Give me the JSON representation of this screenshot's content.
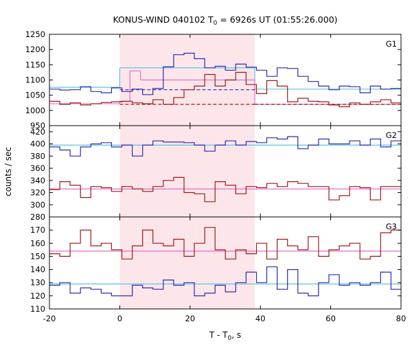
{
  "chart_data": {
    "type": "line",
    "title": "KONUS-WIND 040102 T",
    "title_sub": "0",
    "title_rest": " = 6926s UT (01:55:26.000)",
    "xlabel": "T - T",
    "xlabel_sub": "0",
    "xlabel_rest": ", s",
    "ylabel": "counts / sec",
    "xlim": [
      -20,
      80
    ],
    "x_ticks": [
      "-20",
      "0",
      "20",
      "40",
      "60",
      "80"
    ],
    "shaded_interval": [
      0,
      38.4
    ],
    "colors": {
      "shade": "#fde6ea",
      "blue": "#2b2bb0",
      "red": "#a01818",
      "cyan": "#5fc4e0",
      "pink": "#e070c8"
    },
    "panels": [
      {
        "label": "G1",
        "ylim": [
          950,
          1250
        ],
        "y_ticks": [
          950,
          1000,
          1050,
          1100,
          1150,
          1200,
          1250
        ],
        "bin_width": 2.944,
        "bin_start": -20,
        "series": [
          {
            "color_key": "blue",
            "values": [
              1070,
              1067,
              1068,
              1078,
              1062,
              1058,
              1074,
              1062,
              1070,
              1052,
              1072,
              1143,
              1183,
              1188,
              1170,
              1140,
              1145,
              1132,
              1152,
              1142,
              1132,
              1112,
              1140,
              1138,
              1112,
              1095,
              1080,
              1068,
              1080,
              1078,
              1058,
              1080,
              1070,
              1072,
              1078,
              1065,
              1082,
              1070,
              1078,
              1060,
              1080,
              1066,
              1062,
              1060
            ]
          },
          {
            "color_key": "red",
            "values": [
              1030,
              1020,
              1025,
              1018,
              1022,
              1026,
              1028,
              1030,
              1025,
              1022,
              1035,
              1020,
              1042,
              1068,
              1080,
              1118,
              1080,
              1100,
              1125,
              1085,
              1055,
              1098,
              1080,
              1028,
              1040,
              1030,
              1028,
              1018,
              1012,
              1025,
              1020,
              1028,
              1035,
              1025,
              1018,
              1022,
              1032,
              1020,
              1018,
              1012,
              1015,
              1022,
              1010,
              1025
            ]
          }
        ],
        "levels": [
          {
            "color_key": "cyan",
            "style": "solid",
            "segments": [
              {
                "x": [
                  -20,
                  0
                ],
                "y": 1076
              },
              {
                "x": [
                  0,
                  38.4
                ],
                "y": 1140
              },
              {
                "x": [
                  38.4,
                  80
                ],
                "y": 1070
              }
            ]
          },
          {
            "color_key": "pink",
            "style": "solid",
            "segments": [
              {
                "x": [
                  -20,
                  0
                ],
                "y": 1022
              },
              {
                "x": [
                  0,
                  2.9
                ],
                "y": 1030
              },
              {
                "x": [
                  2.9,
                  5.9
                ],
                "y": 1130
              },
              {
                "x": [
                  5.9,
                  38.4
                ],
                "y": 1100
              },
              {
                "x": [
                  38.4,
                  80
                ],
                "y": 1020
              }
            ]
          },
          {
            "color_key": "blue",
            "style": "dashed",
            "segments": [
              {
                "x": [
                  0,
                  38.4
                ],
                "y": 1068
              }
            ]
          },
          {
            "color_key": "red",
            "style": "dashed",
            "segments": [
              {
                "x": [
                  0,
                  38.4
                ],
                "y": 1020
              },
              {
                "x": [
                  38.4,
                  80
                ],
                "y": 1020
              }
            ]
          }
        ]
      },
      {
        "label": "G2",
        "ylim": [
          280,
          430
        ],
        "y_ticks": [
          280,
          300,
          320,
          340,
          360,
          380,
          400,
          420
        ],
        "bin_width": 2.944,
        "bin_start": -20,
        "series": [
          {
            "color_key": "blue",
            "values": [
              395,
              390,
              380,
              395,
              400,
              402,
              395,
              398,
              380,
              398,
              405,
              403,
              403,
              402,
              398,
              388,
              398,
              405,
              398,
              404,
              402,
              410,
              408,
              412,
              392,
              398,
              408,
              400,
              400,
              405,
              398,
              408,
              395,
              405,
              385,
              400,
              408,
              402,
              390,
              395,
              420,
              400,
              420,
              400
            ]
          },
          {
            "color_key": "red",
            "values": [
              325,
              338,
              332,
              312,
              330,
              328,
              322,
              330,
              326,
              322,
              330,
              340,
              345,
              320,
              318,
              305,
              338,
              332,
              318,
              330,
              328,
              335,
              330,
              338,
              335,
              330,
              330,
              308,
              315,
              330,
              328,
              308,
              330,
              330,
              320,
              328,
              310,
              325,
              322,
              330,
              333,
              320,
              325,
              315
            ]
          }
        ],
        "levels": [
          {
            "color_key": "cyan",
            "style": "solid",
            "segments": [
              {
                "x": [
                  -20,
                  80
                ],
                "y": 398
              }
            ]
          },
          {
            "color_key": "pink",
            "style": "solid",
            "segments": [
              {
                "x": [
                  -20,
                  80
                ],
                "y": 326
              }
            ]
          }
        ]
      },
      {
        "label": "G3",
        "ylim": [
          110,
          180
        ],
        "y_ticks": [
          110,
          120,
          130,
          140,
          150,
          160,
          170
        ],
        "bin_width": 2.944,
        "bin_start": -20,
        "series": [
          {
            "color_key": "blue",
            "values": [
              128,
              130,
              122,
              126,
              125,
              122,
              120,
              120,
              128,
              126,
              125,
              132,
              128,
              130,
              120,
              122,
              128,
              123,
              130,
              138,
              130,
              142,
              125,
              140,
              122,
              120,
              130,
              136,
              128,
              130,
              128,
              130,
              138,
              125,
              130,
              132,
              128,
              130,
              122,
              133,
              122,
              130,
              128,
              130
            ]
          },
          {
            "color_key": "red",
            "values": [
              152,
              150,
              160,
              170,
              158,
              160,
              155,
              148,
              158,
              170,
              160,
              158,
              163,
              150,
              160,
              172,
              155,
              148,
              155,
              152,
              160,
              148,
              163,
              158,
              155,
              165,
              150,
              155,
              158,
              160,
              148,
              150,
              168,
              170,
              165,
              158,
              158,
              160,
              150,
              163,
              158,
              158,
              158,
              150
            ]
          }
        ],
        "levels": [
          {
            "color_key": "cyan",
            "style": "solid",
            "segments": [
              {
                "x": [
                  -20,
                  80
                ],
                "y": 129
              }
            ]
          },
          {
            "color_key": "pink",
            "style": "solid",
            "segments": [
              {
                "x": [
                  -20,
                  80
                ],
                "y": 154
              }
            ]
          }
        ]
      }
    ]
  }
}
